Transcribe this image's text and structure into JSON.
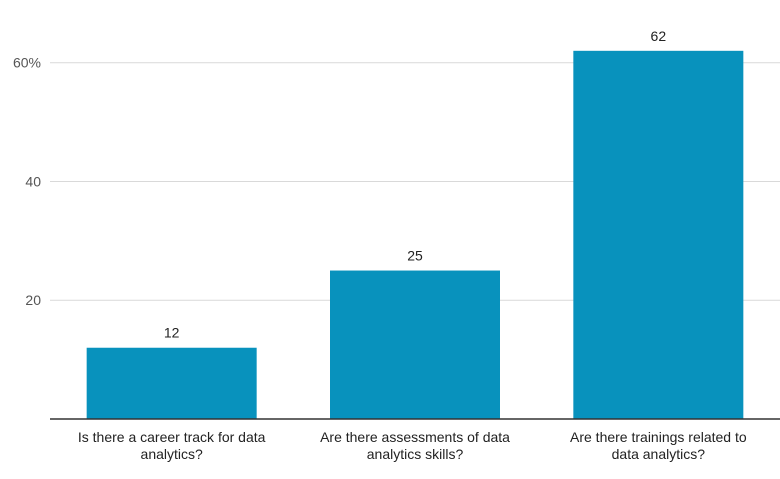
{
  "chart_data": {
    "type": "bar",
    "categories": [
      [
        "Is there a career track for data",
        "analytics?"
      ],
      [
        "Are there assessments of data",
        "analytics skills?"
      ],
      [
        "Are there trainings related to",
        "data analytics?"
      ]
    ],
    "values": [
      12,
      25,
      62
    ],
    "data_labels": [
      "12",
      "25",
      "62"
    ],
    "y_ticks": [
      {
        "value": 20,
        "label": "20"
      },
      {
        "value": 40,
        "label": "40"
      },
      {
        "value": 60,
        "label": "60%"
      }
    ],
    "ylim": [
      0,
      65
    ],
    "grid": true,
    "legend": "none",
    "bar_color": "#0892bd"
  }
}
